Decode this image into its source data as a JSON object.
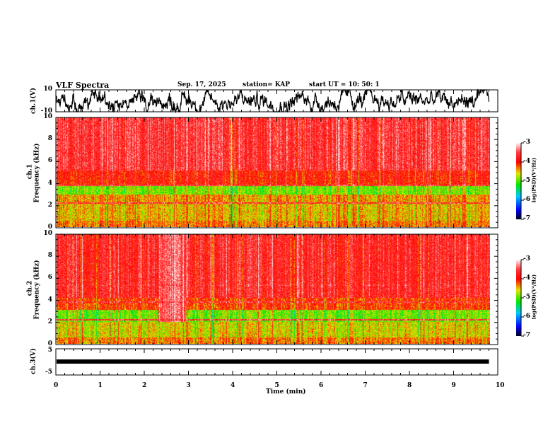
{
  "header": {
    "title": "VLF Spectra",
    "date": "Sep. 17, 2025",
    "station": "station= KAP",
    "start": "start  UT =    10: 50: 1"
  },
  "chart_data": [
    {
      "type": "line",
      "name": "ch1 waveform",
      "ylabel": "ch.1(V)",
      "ylim": [
        -10,
        10
      ],
      "yticks": [
        "10",
        "-10"
      ],
      "xlim": [
        0,
        10
      ],
      "data_end_min": 9.8
    },
    {
      "type": "heatmap",
      "name": "ch1 spectrogram",
      "ylabel": "ch.1\nFrequency (kHz)",
      "ylabel_top": "ch.1",
      "ylabel_bottom": "Frequency (kHz)",
      "ylim": [
        0,
        10
      ],
      "yticks": [
        "0",
        "2",
        "4",
        "6",
        "8",
        "10"
      ],
      "xlim": [
        0,
        10
      ],
      "colorbar": {
        "label": "log(PSD)(V²/Hz)",
        "range": [
          -7,
          -3
        ],
        "ticks": [
          "-3",
          "-4",
          "-5",
          "-6",
          "-7"
        ]
      }
    },
    {
      "type": "heatmap",
      "name": "ch2 spectrogram",
      "ylabel_top": "ch.2",
      "ylabel_bottom": "Frequency (kHz)",
      "ylim": [
        0,
        10
      ],
      "yticks": [
        "0",
        "2",
        "4",
        "6",
        "8",
        "10"
      ],
      "xlim": [
        0,
        10
      ],
      "colorbar": {
        "label": "log(PSD)(V²/Hz)",
        "range": [
          -7,
          -3
        ],
        "ticks": [
          "-3",
          "-4",
          "-5",
          "-6",
          "-7"
        ]
      }
    },
    {
      "type": "line",
      "name": "ch3 waveform",
      "ylabel": "ch.3(V)",
      "ylim": [
        -5,
        5
      ],
      "yticks": [
        "5",
        "-5"
      ],
      "xlim": [
        0,
        10
      ],
      "xlabel": "Time (min)",
      "xticks": [
        "0",
        "1",
        "2",
        "3",
        "4",
        "5",
        "6",
        "7",
        "8",
        "9",
        "10"
      ]
    }
  ]
}
